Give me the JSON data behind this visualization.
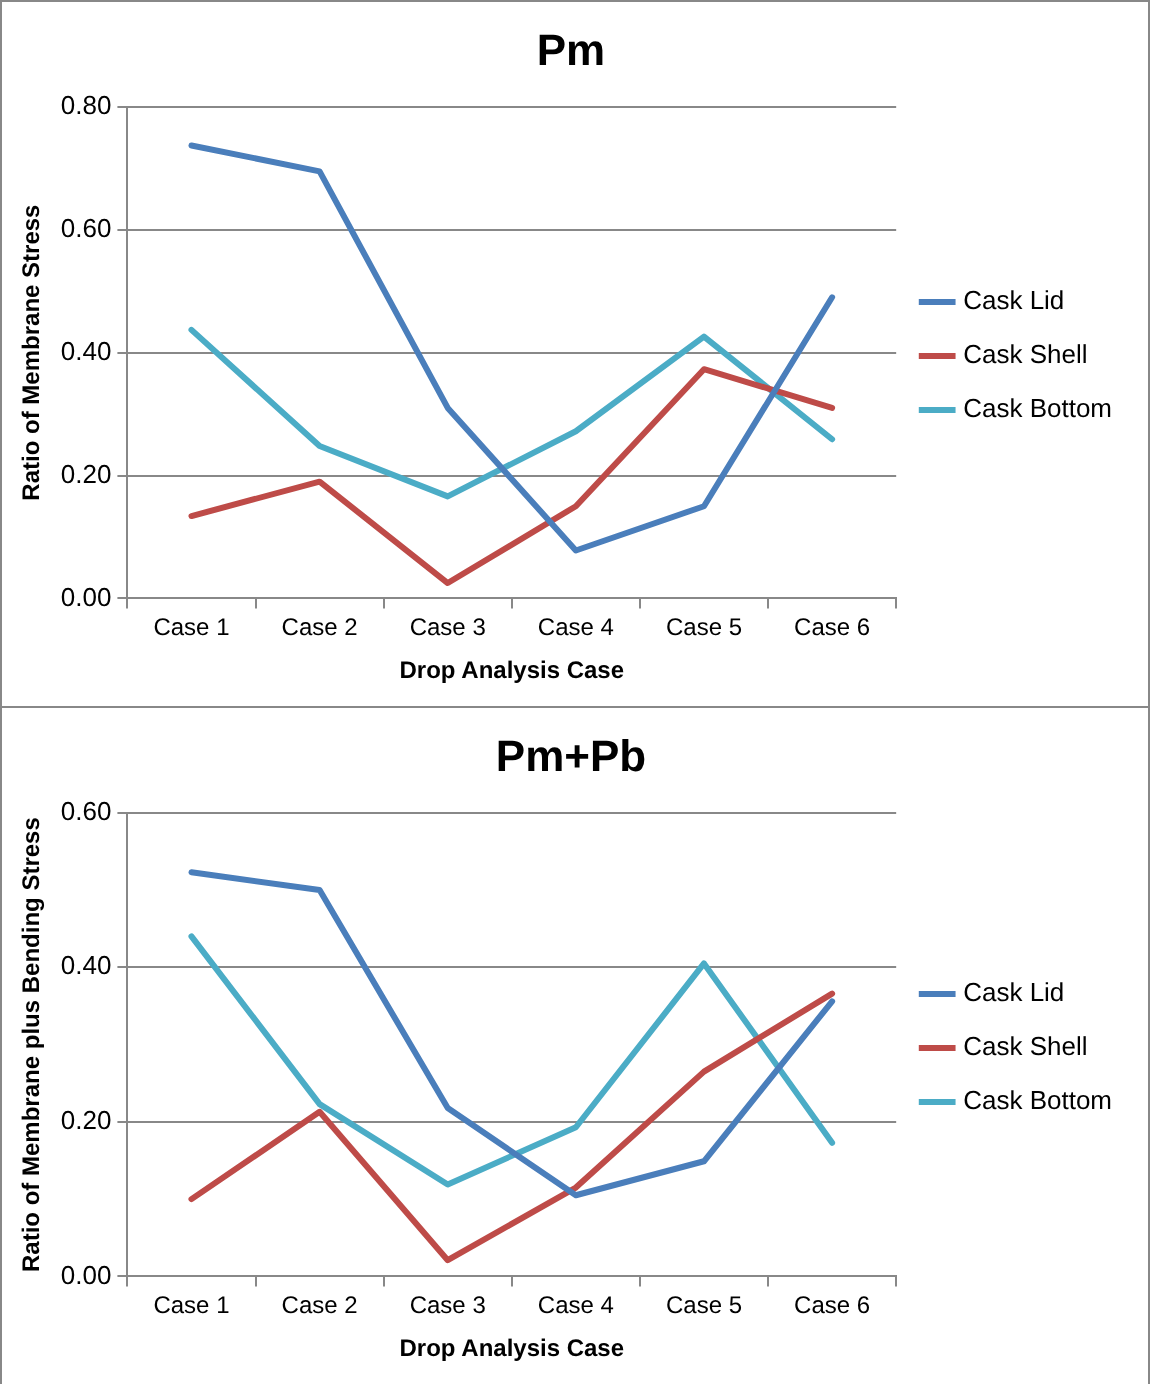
{
  "chart_data": [
    {
      "type": "line",
      "title": "Pm",
      "xlabel": "Drop Analysis Case",
      "ylabel": "Ratio of Membrane Stress",
      "categories": [
        "Case 1",
        "Case 2",
        "Case 3",
        "Case 4",
        "Case 5",
        "Case 6"
      ],
      "series": [
        {
          "name": "Cask Lid",
          "color": "#4a7ebb",
          "values": [
            0.737,
            0.695,
            0.31,
            0.078,
            0.15,
            0.49
          ]
        },
        {
          "name": "Cask Shell",
          "color": "#be4b48",
          "values": [
            0.134,
            0.19,
            0.025,
            0.15,
            0.373,
            0.31
          ]
        },
        {
          "name": "Cask Bottom",
          "color": "#4bacc6",
          "values": [
            0.437,
            0.248,
            0.166,
            0.272,
            0.426,
            0.259
          ]
        }
      ],
      "ylim": [
        0,
        0.8
      ],
      "yticks": [
        {
          "value": 0,
          "label": "0.00"
        },
        {
          "value": 0.2,
          "label": "0.20"
        },
        {
          "value": 0.4,
          "label": "0.40"
        },
        {
          "value": 0.6,
          "label": "0.60"
        },
        {
          "value": 0.8,
          "label": "0.80"
        }
      ],
      "grid": "y",
      "legend": "right",
      "marker": "none",
      "line_style": "solid"
    },
    {
      "type": "line",
      "title": "Pm+Pb",
      "xlabel": "Drop Analysis Case",
      "ylabel": "Ratio of Membrane plus Bending Stress",
      "categories": [
        "Case 1",
        "Case 2",
        "Case 3",
        "Case 4",
        "Case 5",
        "Case 6"
      ],
      "series": [
        {
          "name": "Cask Lid",
          "color": "#4a7ebb",
          "values": [
            0.523,
            0.5,
            0.218,
            0.105,
            0.149,
            0.356
          ]
        },
        {
          "name": "Cask Shell",
          "color": "#be4b48",
          "values": [
            0.1,
            0.213,
            0.021,
            0.115,
            0.265,
            0.366
          ]
        },
        {
          "name": "Cask Bottom",
          "color": "#4bacc6",
          "values": [
            0.44,
            0.223,
            0.119,
            0.193,
            0.405,
            0.173
          ]
        }
      ],
      "ylim": [
        0,
        0.6
      ],
      "yticks": [
        {
          "value": 0,
          "label": "0.00"
        },
        {
          "value": 0.2,
          "label": "0.20"
        },
        {
          "value": 0.4,
          "label": "0.40"
        },
        {
          "value": 0.6,
          "label": "0.60"
        }
      ],
      "grid": "y",
      "legend": "right",
      "marker": "none",
      "line_style": "solid"
    }
  ]
}
